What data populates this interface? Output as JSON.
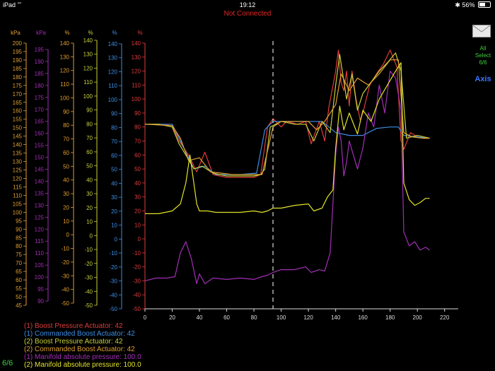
{
  "status_bar": {
    "carrier": "iPad",
    "time": "19:12",
    "battery": "56%",
    "battery_level": 0.56
  },
  "connection_status": "Not Connected",
  "side_panel": {
    "mail_icon": "envelope-icon",
    "all_select_line1": "All",
    "all_select_line2": "Select",
    "all_select_line3": "6/6",
    "axis_label": "Axis"
  },
  "page_count": "6/6",
  "colors": {
    "red": "#e03b3b",
    "blue": "#3d8ee6",
    "yellow_green": "#c8d13a",
    "orange": "#e0a030",
    "magenta": "#a22fb6",
    "yellow": "#e2e22a",
    "status_red": "#e32626",
    "accent_green": "#3ecf3e",
    "accent_blue": "#3a73ff"
  },
  "chart_data": {
    "type": "line",
    "x_ticks": [
      0,
      20,
      40,
      60,
      80,
      100,
      120,
      140,
      160,
      180,
      200,
      220
    ],
    "xlim": [
      0,
      230
    ],
    "cursor_x": 94,
    "axes": [
      {
        "unit": "kPa",
        "color": "#e0a030",
        "min": 45,
        "max": 200,
        "step": 5
      },
      {
        "unit": "kPa",
        "color": "#a22fb6",
        "min": 90,
        "max": 195,
        "step": 5
      },
      {
        "unit": "%",
        "color": "#e0a030",
        "min": -50,
        "max": 140,
        "step": 10
      },
      {
        "unit": "%",
        "color": "#c8d13a",
        "min": -50,
        "max": 140,
        "step": 10
      },
      {
        "unit": "%",
        "color": "#3d8ee6",
        "min": -50,
        "max": 140,
        "step": 10
      },
      {
        "unit": "%",
        "color": "#e03b3b",
        "min": -50,
        "max": 140,
        "step": 10
      }
    ],
    "series": [
      {
        "name": "(1) Boost Pressure Actuator: 42",
        "color": "#e03b3b",
        "x": [
          0,
          10,
          20,
          25,
          32,
          38,
          44,
          50,
          60,
          70,
          80,
          85,
          90,
          94,
          100,
          104,
          112,
          118,
          122,
          128,
          132,
          135,
          140,
          142,
          144,
          146,
          148,
          150,
          152,
          155,
          158,
          160,
          165,
          170,
          175,
          180,
          185,
          188,
          190,
          195,
          200,
          205,
          209
        ],
        "y": [
          82,
          82,
          81,
          70,
          60,
          48,
          62,
          46,
          44,
          44,
          44,
          46,
          80,
          86,
          80,
          84,
          82,
          84,
          68,
          84,
          70,
          94,
          120,
          135,
          112,
          106,
          120,
          95,
          120,
          100,
          85,
          90,
          110,
          118,
          125,
          135,
          123,
          70,
          64,
          76,
          73,
          72,
          72
        ]
      },
      {
        "name": "(1) Commanded Boost Actuator: 42",
        "color": "#3d8ee6",
        "x": [
          0,
          20,
          28,
          36,
          44,
          52,
          60,
          70,
          82,
          88,
          94,
          100,
          112,
          120,
          130,
          140,
          150,
          160,
          170,
          180,
          186,
          190,
          200,
          209
        ],
        "y": [
          82,
          82,
          66,
          50,
          52,
          46,
          46,
          46,
          47,
          78,
          84,
          84,
          84,
          84,
          84,
          76,
          74,
          74,
          79,
          80,
          80,
          74,
          73,
          72
        ]
      },
      {
        "name": "(2) Boost Pressure Actuator: 42",
        "color": "#c8d13a",
        "x": [
          0,
          10,
          20,
          25,
          30,
          36,
          42,
          50,
          60,
          70,
          80,
          85,
          88,
          92,
          100,
          110,
          118,
          124,
          130,
          136,
          140,
          143,
          148,
          152,
          156,
          160,
          166,
          172,
          178,
          184,
          188,
          192,
          200,
          209
        ],
        "y": [
          82,
          82,
          80,
          68,
          60,
          50,
          52,
          47,
          45,
          45,
          45,
          46,
          50,
          80,
          84,
          82,
          82,
          70,
          84,
          76,
          110,
          132,
          100,
          118,
          92,
          104,
          112,
          120,
          126,
          133,
          120,
          72,
          74,
          72
        ]
      },
      {
        "name": "(2) Commanded Boost Actuator: 42",
        "color": "#e0a030",
        "x": [
          0,
          20,
          26,
          32,
          40,
          48,
          56,
          64,
          72,
          80,
          86,
          94,
          100,
          110,
          120,
          126,
          132,
          140,
          144,
          150,
          156,
          164,
          172,
          180,
          186,
          190,
          196,
          204,
          209
        ],
        "y": [
          82,
          81,
          72,
          56,
          58,
          48,
          47,
          46,
          46,
          46,
          46,
          80,
          84,
          84,
          84,
          78,
          84,
          96,
          118,
          106,
          115,
          110,
          118,
          128,
          128,
          76,
          73,
          72,
          72
        ]
      },
      {
        "name": "(1) Manifold absolute pressure: 100.0",
        "color": "#a22fb6",
        "x": [
          0,
          8,
          16,
          22,
          26,
          30,
          34,
          38,
          40,
          44,
          50,
          60,
          70,
          80,
          86,
          90,
          94,
          100,
          110,
          118,
          122,
          128,
          132,
          136,
          140,
          142,
          144,
          146,
          148,
          150,
          153,
          156,
          160,
          164,
          168,
          172,
          176,
          180,
          184,
          188,
          190,
          194,
          198,
          202,
          206,
          209
        ],
        "y": [
          -30,
          -28,
          -28,
          -27,
          -10,
          -2,
          -14,
          -32,
          -25,
          -32,
          -28,
          -29,
          -28,
          -29,
          -27,
          -26,
          -24,
          -22,
          -22,
          -20,
          -24,
          -22,
          -23,
          -10,
          60,
          80,
          70,
          45,
          55,
          70,
          60,
          50,
          65,
          90,
          80,
          110,
          90,
          120,
          115,
          92,
          5,
          -5,
          -2,
          -8,
          -6,
          -8
        ]
      },
      {
        "name": "(2) Manifold absolute pressure: 100.0",
        "color": "#e2e22a",
        "x": [
          0,
          10,
          20,
          26,
          30,
          33,
          38,
          40,
          46,
          52,
          60,
          70,
          80,
          86,
          90,
          94,
          100,
          110,
          120,
          124,
          130,
          134,
          138,
          140,
          143,
          146,
          150,
          156,
          160,
          166,
          172,
          178,
          184,
          188,
          190,
          194,
          198,
          202,
          206,
          209
        ],
        "y": [
          18,
          18,
          20,
          25,
          40,
          60,
          25,
          20,
          20,
          19,
          19,
          19,
          20,
          19,
          20,
          22,
          22,
          24,
          25,
          20,
          22,
          30,
          35,
          65,
          95,
          78,
          90,
          75,
          92,
          84,
          100,
          110,
          120,
          126,
          40,
          28,
          24,
          26,
          29,
          29
        ]
      }
    ]
  }
}
